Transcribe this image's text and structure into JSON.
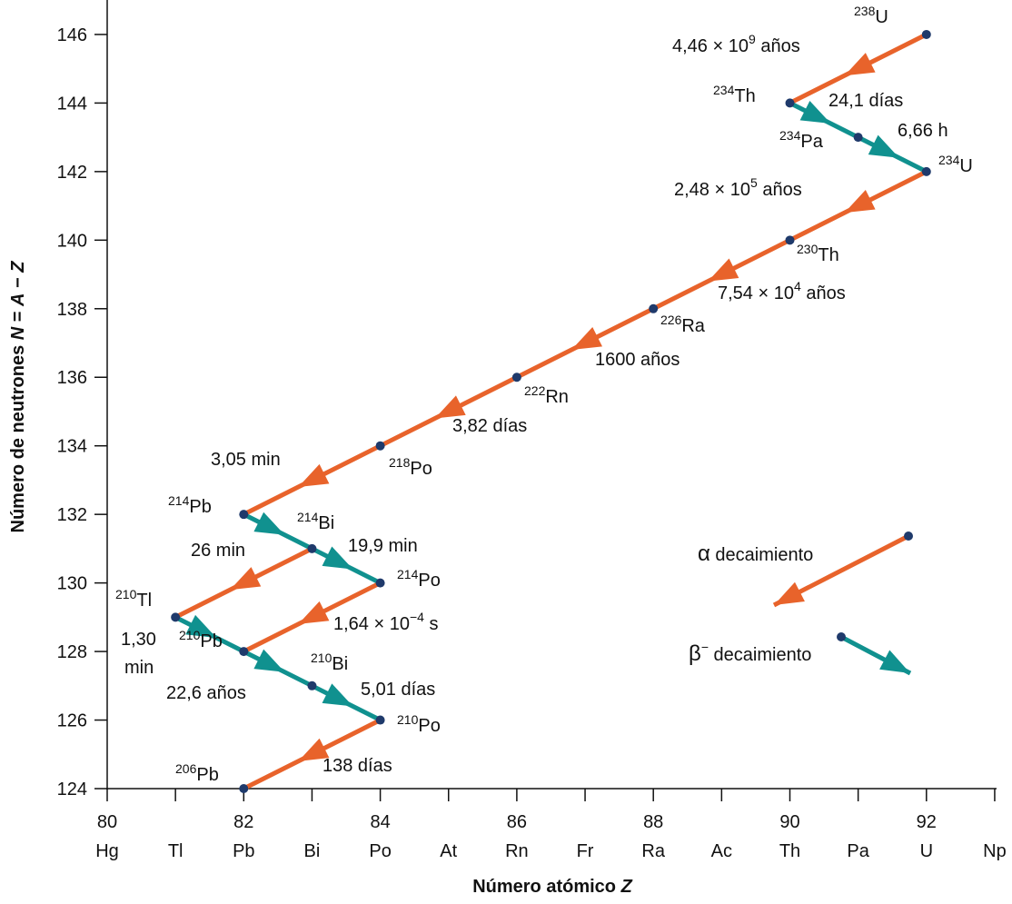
{
  "chart_data": {
    "type": "scatter",
    "xlabel": "Número atómico",
    "xlabel_var": "Z",
    "ylabel": "Número de neutrones",
    "ylabel_formula": [
      "N",
      " = ",
      "A",
      " − ",
      "Z"
    ],
    "xlim": [
      80,
      93
    ],
    "ylim": [
      124,
      146
    ],
    "x_ticks": [
      80,
      82,
      84,
      86,
      88,
      90,
      92
    ],
    "x_elements": [
      "Hg",
      "Tl",
      "Pb",
      "Bi",
      "Po",
      "At",
      "Rn",
      "Fr",
      "Ra",
      "Ac",
      "Th",
      "Pa",
      "U",
      "Np"
    ],
    "y_ticks": [
      124,
      126,
      128,
      130,
      132,
      134,
      136,
      138,
      140,
      142,
      144,
      146
    ],
    "grid": false,
    "colors": {
      "alpha": "#e8632b",
      "beta": "#10918f",
      "nuclide": "#1f3a6b"
    },
    "nuclides": [
      {
        "id": "U238",
        "mass": "238",
        "symbol": "U",
        "Z": 92,
        "N": 146
      },
      {
        "id": "Th234",
        "mass": "234",
        "symbol": "Th",
        "Z": 90,
        "N": 144
      },
      {
        "id": "Pa234",
        "mass": "234",
        "symbol": "Pa",
        "Z": 91,
        "N": 143
      },
      {
        "id": "U234",
        "mass": "234",
        "symbol": "U",
        "Z": 92,
        "N": 142
      },
      {
        "id": "Th230",
        "mass": "230",
        "symbol": "Th",
        "Z": 90,
        "N": 140
      },
      {
        "id": "Ra226",
        "mass": "226",
        "symbol": "Ra",
        "Z": 88,
        "N": 138
      },
      {
        "id": "Rn222",
        "mass": "222",
        "symbol": "Rn",
        "Z": 86,
        "N": 136
      },
      {
        "id": "Po218",
        "mass": "218",
        "symbol": "Po",
        "Z": 84,
        "N": 134
      },
      {
        "id": "Pb214",
        "mass": "214",
        "symbol": "Pb",
        "Z": 82,
        "N": 132
      },
      {
        "id": "Bi214",
        "mass": "214",
        "symbol": "Bi",
        "Z": 83,
        "N": 131
      },
      {
        "id": "Po214",
        "mass": "214",
        "symbol": "Po",
        "Z": 84,
        "N": 130
      },
      {
        "id": "Tl210",
        "mass": "210",
        "symbol": "Tl",
        "Z": 81,
        "N": 129
      },
      {
        "id": "Pb210",
        "mass": "210",
        "symbol": "Pb",
        "Z": 82,
        "N": 128
      },
      {
        "id": "Bi210",
        "mass": "210",
        "symbol": "Bi",
        "Z": 83,
        "N": 127
      },
      {
        "id": "Po210",
        "mass": "210",
        "symbol": "Po",
        "Z": 84,
        "N": 126
      },
      {
        "id": "Pb206",
        "mass": "206",
        "symbol": "Pb",
        "Z": 82,
        "N": 124
      }
    ],
    "decays": [
      {
        "from": "U238",
        "to": "Th234",
        "type": "alpha",
        "half_life": {
          "base": "4,46 × 10",
          "exp": "9",
          "unit": " años"
        }
      },
      {
        "from": "Th234",
        "to": "Pa234",
        "type": "beta",
        "half_life": {
          "base": "24,1 días"
        }
      },
      {
        "from": "Pa234",
        "to": "U234",
        "type": "beta",
        "half_life": {
          "base": "6,66 h"
        }
      },
      {
        "from": "U234",
        "to": "Th230",
        "type": "alpha",
        "half_life": {
          "base": "2,48 × 10",
          "exp": "5",
          "unit": " años"
        }
      },
      {
        "from": "Th230",
        "to": "Ra226",
        "type": "alpha",
        "half_life": {
          "base": "7,54 × 10",
          "exp": "4",
          "unit": " años"
        }
      },
      {
        "from": "Ra226",
        "to": "Rn222",
        "type": "alpha",
        "half_life": {
          "base": "1600 años"
        }
      },
      {
        "from": "Rn222",
        "to": "Po218",
        "type": "alpha",
        "half_life": {
          "base": "3,82 días"
        }
      },
      {
        "from": "Po218",
        "to": "Pb214",
        "type": "alpha",
        "half_life": {
          "base": "3,05 min"
        }
      },
      {
        "from": "Pb214",
        "to": "Bi214",
        "type": "beta",
        "half_life": null
      },
      {
        "from": "Bi214",
        "to": "Tl210",
        "type": "alpha",
        "half_life": {
          "base": "26 min"
        }
      },
      {
        "from": "Bi214",
        "to": "Po214",
        "type": "beta",
        "half_life": {
          "base": "19,9 min"
        }
      },
      {
        "from": "Po214",
        "to": "Pb210",
        "type": "alpha",
        "half_life": {
          "base": "1,64 × 10",
          "exp": "−4",
          "unit": " s"
        }
      },
      {
        "from": "Tl210",
        "to": "Pb210",
        "type": "beta",
        "half_life": {
          "base": "1,30",
          "line2": "min"
        }
      },
      {
        "from": "Pb210",
        "to": "Bi210",
        "type": "beta",
        "half_life": {
          "base": "22,6 años"
        }
      },
      {
        "from": "Bi210",
        "to": "Po210",
        "type": "beta",
        "half_life": {
          "base": "5,01 días"
        }
      },
      {
        "from": "Po210",
        "to": "Pb206",
        "type": "alpha",
        "half_life": {
          "base": "138 días"
        }
      }
    ],
    "legend": {
      "placement": "right",
      "alpha": {
        "symbol": "α",
        "label": " decaimiento"
      },
      "beta": {
        "symbol": "β",
        "sup": "−",
        "label": " decaimiento"
      }
    }
  }
}
